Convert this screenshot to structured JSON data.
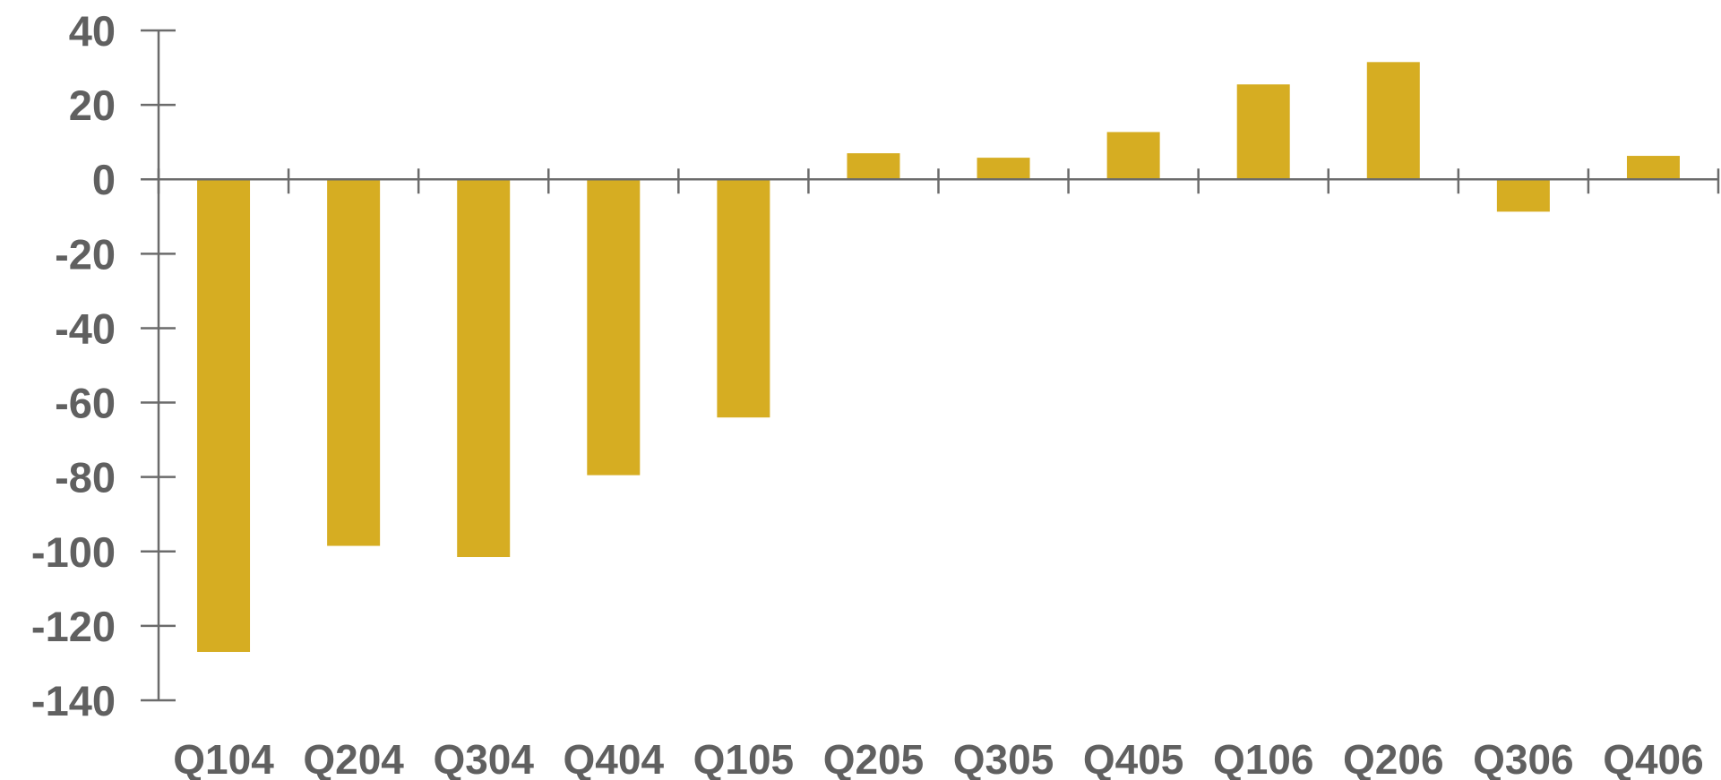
{
  "chart_data": {
    "type": "bar",
    "title": "",
    "xlabel": "",
    "ylabel": "",
    "categories": [
      "Q104",
      "Q204",
      "Q304",
      "Q404",
      "Q105",
      "Q205",
      "Q305",
      "Q405",
      "Q106",
      "Q206",
      "Q306",
      "Q406"
    ],
    "values": [
      -127,
      -98.5,
      -101.5,
      -79.5,
      -64,
      7,
      5.8,
      12.7,
      25.5,
      31.5,
      -8.7,
      6.3
    ],
    "ylim": [
      -140,
      40
    ],
    "yticks": [
      40,
      20,
      0,
      -20,
      -40,
      -60,
      -80,
      -100,
      -120,
      -140
    ],
    "grid": false,
    "legend": "none",
    "colors": {
      "bar": "#D6AD22",
      "axis": "#6B6B6B",
      "text": "#606060"
    }
  }
}
